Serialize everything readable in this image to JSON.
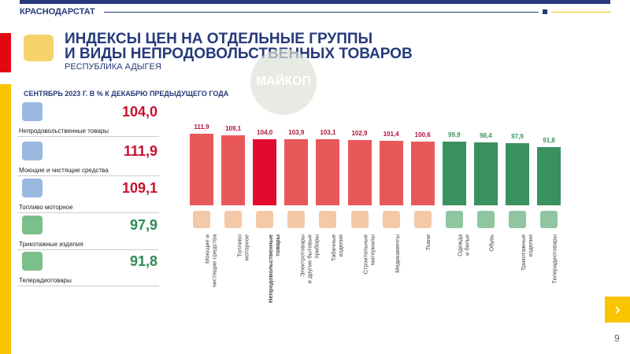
{
  "header": {
    "org": "КРАСНОДАРСТАТ",
    "title_line1": "ИНДЕКСЫ ЦЕН НА ОТДЕЛЬНЫЕ ГРУППЫ",
    "title_line2": "И ВИДЫ НЕПРОДОВОЛЬСТВЕННЫХ ТОВАРОВ",
    "region": "РЕСПУБЛИКА АДЫГЕЯ",
    "watermark": "МАЙКОП"
  },
  "period": "СЕНТЯБРЬ 2023 Г. В % К ДЕКАБРЮ ПРЕДЫДУЩЕГО ГОДА",
  "summary": [
    {
      "label": "Непродовольственные товары",
      "value": "104,0",
      "color": "#c8102e",
      "icon": "bicycle-clothes-icon"
    },
    {
      "label": "Моющие и чистящие средства",
      "value": "111,9",
      "color": "#c8102e",
      "icon": "detergent-icon"
    },
    {
      "label": "Топливо моторное",
      "value": "109,1",
      "color": "#c8102e",
      "icon": "fuel-canister-icon"
    },
    {
      "label": "Трикотажные изделия",
      "value": "97,9",
      "color": "#2e8b57",
      "icon": "knit-hat-icon"
    },
    {
      "label": "Телерадиотовары",
      "value": "91,8",
      "color": "#2e8b57",
      "icon": "tv-icon"
    }
  ],
  "chart_data": {
    "type": "bar",
    "categories": [
      "Моющие и\nчистящие средства",
      "Топливо\nмоторное",
      "Непродовольственные\nтовары",
      "Электротовары\nи другие бытовые\nприборы",
      "Табачные\nизделия",
      "Строительные\nматериалы",
      "Медикаменты",
      "Ткани",
      "Одежда\nи белье",
      "Обувь",
      "Трикотажные\nизделия",
      "Телерадиотовары"
    ],
    "values": [
      111.9,
      109.1,
      104.0,
      103.9,
      103.1,
      102.9,
      101.4,
      100.6,
      99.9,
      98.4,
      97.9,
      91.8
    ],
    "labels": [
      "111,9",
      "109,1",
      "104,0",
      "103,9",
      "103,1",
      "102,9",
      "101,4",
      "100,6",
      "99,9",
      "98,4",
      "97,9",
      "91,8"
    ],
    "colors": {
      "above_100": "#e8585a",
      "total": "#e30b2d",
      "below_100": "#3a9160",
      "label_above": "#b0103a",
      "label_below": "#3a9160"
    }
  },
  "nav": {
    "next": "›",
    "page": "9"
  }
}
